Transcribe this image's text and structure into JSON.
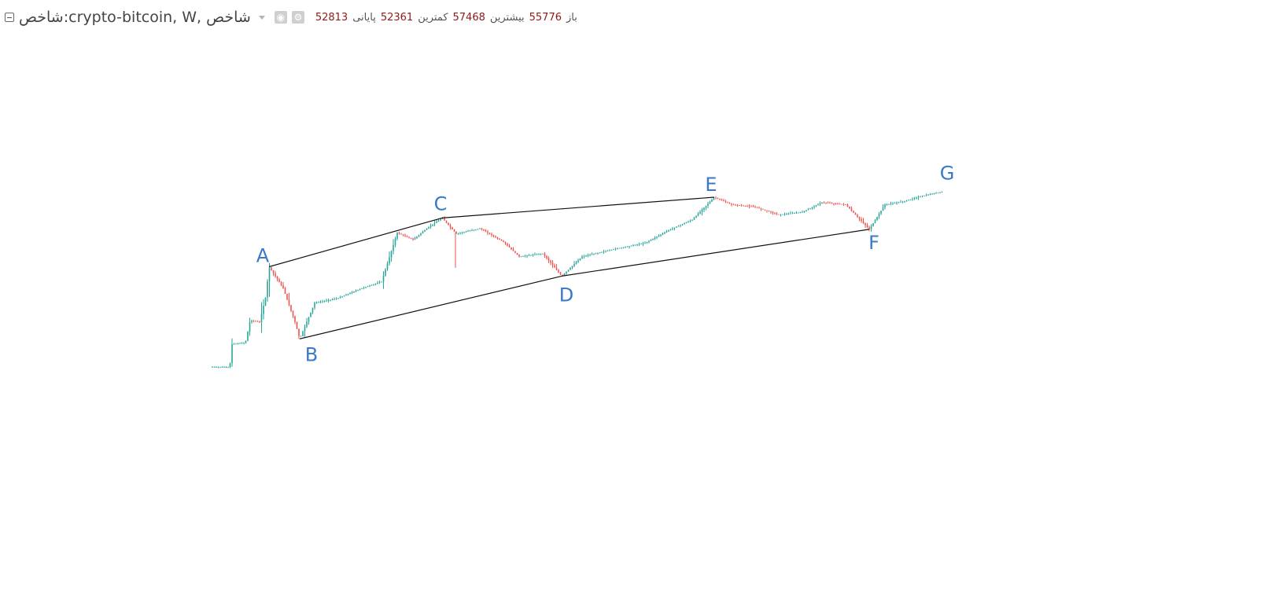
{
  "legend": {
    "symbol": "شاخص:crypto-bitcoin, W, شاخص",
    "open_label": "باز",
    "open": "55776",
    "high_label": "بیشترین",
    "high": "57468",
    "low_label": "کمترین",
    "low": "52361",
    "close_label": "پایانی",
    "close": "52813"
  },
  "colors": {
    "up": "#26a69a",
    "down": "#ef5350",
    "lines": "#111111",
    "labels": "#3a78c9"
  },
  "icons": [
    "collapse-icon",
    "chevron-down-icon",
    "eye-icon",
    "gear-icon"
  ],
  "chart_data": {
    "type": "candlestick",
    "interval": "W",
    "grid": false,
    "points": [
      {
        "label": "A",
        "price": 19500
      },
      {
        "label": "B",
        "price": 3300
      },
      {
        "label": "C",
        "price": 64800
      },
      {
        "label": "D",
        "price": 15500
      },
      {
        "label": "E",
        "price": 108000
      },
      {
        "label": "F",
        "price": 49000
      },
      {
        "label": "G",
        "price": 123000
      }
    ],
    "trendlines": [
      [
        "A",
        "C"
      ],
      [
        "C",
        "E"
      ],
      [
        "B",
        "D"
      ],
      [
        "D",
        "F"
      ]
    ]
  }
}
